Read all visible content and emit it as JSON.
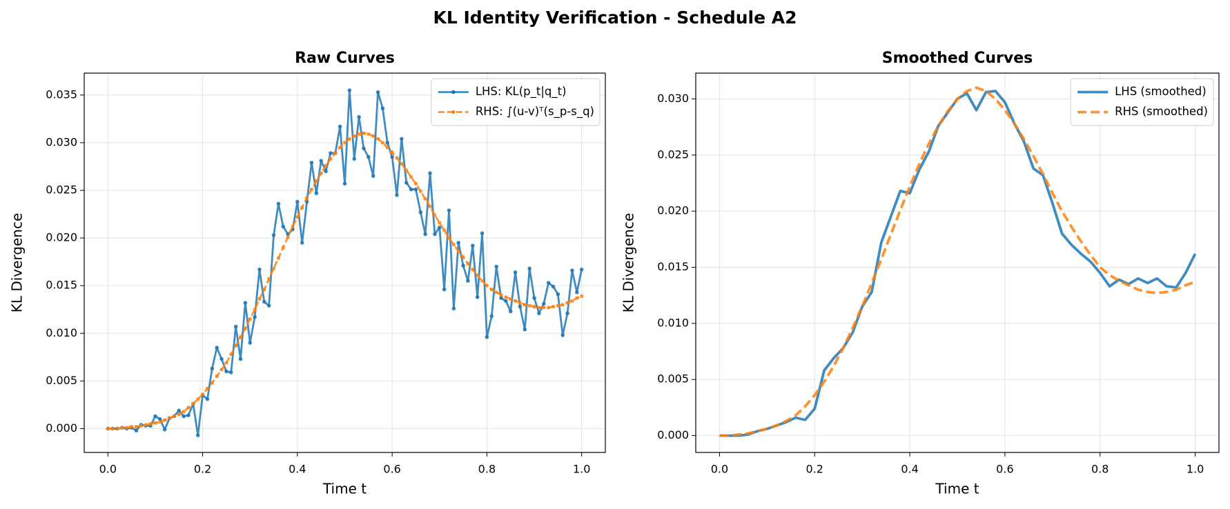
{
  "title": "KL Identity Verification - Schedule A2",
  "chart_data": [
    {
      "type": "line",
      "title": "Raw Curves",
      "xlabel": "Time t",
      "ylabel": "KL Divergence",
      "x": [
        0,
        0.01,
        0.02,
        0.03,
        0.04,
        0.05,
        0.06,
        0.07,
        0.08,
        0.09,
        0.1,
        0.11,
        0.12,
        0.13,
        0.14,
        0.15,
        0.16,
        0.17,
        0.18,
        0.19,
        0.2,
        0.21,
        0.22,
        0.23,
        0.24,
        0.25,
        0.26,
        0.27,
        0.28,
        0.29,
        0.3,
        0.31,
        0.32,
        0.33,
        0.34,
        0.35,
        0.36,
        0.37,
        0.38,
        0.39,
        0.4,
        0.41,
        0.42,
        0.43,
        0.44,
        0.45,
        0.46,
        0.47,
        0.48,
        0.49,
        0.5,
        0.51,
        0.52,
        0.53,
        0.54,
        0.55,
        0.56,
        0.57,
        0.58,
        0.59,
        0.6,
        0.61,
        0.62,
        0.63,
        0.64,
        0.65,
        0.66,
        0.67,
        0.68,
        0.69,
        0.7,
        0.71,
        0.72,
        0.73,
        0.74,
        0.75,
        0.76,
        0.77,
        0.78,
        0.79,
        0.8,
        0.81,
        0.82,
        0.83,
        0.84,
        0.85,
        0.86,
        0.87,
        0.88,
        0.89,
        0.9,
        0.91,
        0.92,
        0.93,
        0.94,
        0.95,
        0.96,
        0.97,
        0.98,
        0.99,
        1
      ],
      "series": [
        {
          "name": "LHS: KL(p_t|q_t)",
          "color": "#1f77b4",
          "marker": "o",
          "linestyle": "solid",
          "values": [
            0,
            0,
            0,
            0.0001,
            0,
            0.0001,
            -0.0002,
            0.0004,
            0.0003,
            0.0003,
            0.0013,
            0.001,
            -0.0001,
            0.0011,
            0.0013,
            0.0019,
            0.0013,
            0.0014,
            0.0026,
            -0.0007,
            0.0035,
            0.0031,
            0.0063,
            0.0085,
            0.0073,
            0.006,
            0.0059,
            0.0107,
            0.0073,
            0.0132,
            0.009,
            0.0117,
            0.0167,
            0.0133,
            0.0129,
            0.0203,
            0.0236,
            0.0212,
            0.0204,
            0.0209,
            0.0238,
            0.0195,
            0.0238,
            0.0279,
            0.0247,
            0.0281,
            0.027,
            0.0289,
            0.0289,
            0.0317,
            0.0257,
            0.0355,
            0.0283,
            0.0327,
            0.0294,
            0.0285,
            0.0265,
            0.0353,
            0.0336,
            0.03,
            0.0285,
            0.0245,
            0.0304,
            0.0258,
            0.0251,
            0.0251,
            0.0227,
            0.0204,
            0.0268,
            0.0204,
            0.0211,
            0.0146,
            0.0229,
            0.0126,
            0.0195,
            0.0171,
            0.0155,
            0.0192,
            0.0138,
            0.0205,
            0.0096,
            0.0118,
            0.017,
            0.0137,
            0.0134,
            0.0123,
            0.0164,
            0.0128,
            0.0104,
            0.0168,
            0.0137,
            0.0121,
            0.0131,
            0.0153,
            0.0149,
            0.0141,
            0.0098,
            0.0121,
            0.0166,
            0.0143,
            0.0167
          ]
        },
        {
          "name": "RHS: ∫(u-v)ᵀ(s_p-s_q)",
          "color": "#ff7f0e",
          "marker": "s",
          "linestyle": "dashed",
          "values": [
            0,
            0,
            0,
            0.0001,
            0.0001,
            0.0002,
            0.0002,
            0.0003,
            0.0004,
            0.0005,
            0.0006,
            0.0007,
            0.0009,
            0.0011,
            0.0013,
            0.0015,
            0.0018,
            0.0022,
            0.0026,
            0.0031,
            0.0036,
            0.0042,
            0.0048,
            0.0055,
            0.0062,
            0.0069,
            0.0078,
            0.0087,
            0.0096,
            0.0105,
            0.0115,
            0.0125,
            0.0136,
            0.0146,
            0.0157,
            0.0168,
            0.0179,
            0.019,
            0.0201,
            0.0212,
            0.0222,
            0.0232,
            0.0242,
            0.0251,
            0.026,
            0.0268,
            0.0276,
            0.0283,
            0.0289,
            0.0295,
            0.03,
            0.0304,
            0.0307,
            0.0309,
            0.031,
            0.0309,
            0.0307,
            0.0304,
            0.03,
            0.0295,
            0.029,
            0.0284,
            0.0278,
            0.0271,
            0.0264,
            0.0257,
            0.0249,
            0.0241,
            0.0233,
            0.0224,
            0.0216,
            0.0208,
            0.02,
            0.0193,
            0.0186,
            0.018,
            0.0173,
            0.0167,
            0.0161,
            0.0155,
            0.015,
            0.0146,
            0.0143,
            0.014,
            0.0138,
            0.0136,
            0.0134,
            0.0132,
            0.013,
            0.0129,
            0.0128,
            0.0127,
            0.0127,
            0.0127,
            0.0128,
            0.0129,
            0.013,
            0.0132,
            0.0134,
            0.0137,
            0.0139
          ]
        }
      ],
      "xlim": [
        -0.05,
        1.05
      ],
      "ylim": [
        -0.0025,
        0.0373
      ],
      "xticks": [
        {
          "value": 0,
          "label": "0.0"
        },
        0.2,
        0.4,
        0.6,
        0.8,
        {
          "value": 1,
          "label": "1.0"
        }
      ],
      "yticks": [
        {
          "value": 0,
          "label": "0.000"
        },
        0.005,
        {
          "value": 0.01,
          "label": "0.010"
        },
        0.015,
        {
          "value": 0.02,
          "label": "0.020"
        },
        0.025,
        {
          "value": 0.03,
          "label": "0.030"
        },
        0.035
      ],
      "grid": true,
      "legend": "upper right"
    },
    {
      "type": "line",
      "title": "Smoothed Curves",
      "xlabel": "Time t",
      "ylabel": "KL Divergence",
      "x": [
        0,
        0.02,
        0.04,
        0.06,
        0.08,
        0.1,
        0.12,
        0.14,
        0.16,
        0.18,
        0.2,
        0.22,
        0.24,
        0.26,
        0.28,
        0.3,
        0.32,
        0.34,
        0.36,
        0.38,
        0.4,
        0.42,
        0.44,
        0.46,
        0.48,
        0.5,
        0.52,
        0.54,
        0.56,
        0.58,
        0.6,
        0.62,
        0.64,
        0.66,
        0.68,
        0.7,
        0.72,
        0.74,
        0.76,
        0.78,
        0.8,
        0.82,
        0.84,
        0.86,
        0.88,
        0.9,
        0.92,
        0.94,
        0.96,
        0.98,
        1
      ],
      "series": [
        {
          "name": "LHS (smoothed)",
          "color": "#1f77b4",
          "linestyle": "solid",
          "values": [
            0,
            0,
            0,
            0.0001,
            0.0004,
            0.0006,
            0.0009,
            0.0012,
            0.0016,
            0.0014,
            0.0024,
            0.0058,
            0.0069,
            0.0078,
            0.0092,
            0.0115,
            0.0128,
            0.0172,
            0.0195,
            0.0218,
            0.0216,
            0.0237,
            0.0253,
            0.0276,
            0.0288,
            0.03,
            0.0305,
            0.029,
            0.0306,
            0.0307,
            0.0297,
            0.0278,
            0.0262,
            0.0238,
            0.0232,
            0.0207,
            0.018,
            0.017,
            0.0162,
            0.0155,
            0.0145,
            0.0133,
            0.0139,
            0.0135,
            0.014,
            0.0136,
            0.014,
            0.0133,
            0.0132,
            0.0145,
            0.0162
          ]
        },
        {
          "name": "RHS (smoothed)",
          "color": "#ff7f0e",
          "linestyle": "dashed",
          "values": [
            0,
            0,
            0.0001,
            0.0002,
            0.0004,
            0.0006,
            0.0009,
            0.0013,
            0.0018,
            0.0026,
            0.0036,
            0.0048,
            0.0062,
            0.0078,
            0.0096,
            0.0115,
            0.0136,
            0.0157,
            0.0179,
            0.0201,
            0.0222,
            0.0242,
            0.026,
            0.0276,
            0.0289,
            0.03,
            0.0307,
            0.031,
            0.0307,
            0.03,
            0.029,
            0.0278,
            0.0264,
            0.0249,
            0.0233,
            0.0216,
            0.02,
            0.0186,
            0.0173,
            0.0161,
            0.015,
            0.0143,
            0.0138,
            0.0134,
            0.013,
            0.0128,
            0.0127,
            0.0128,
            0.013,
            0.0134,
            0.0137
          ]
        }
      ],
      "xlim": [
        -0.05,
        1.05
      ],
      "ylim": [
        -0.0015,
        0.0323
      ],
      "xticks": [
        {
          "value": 0,
          "label": "0.0"
        },
        0.2,
        0.4,
        0.6,
        0.8,
        {
          "value": 1,
          "label": "1.0"
        }
      ],
      "yticks": [
        {
          "value": 0,
          "label": "0.000"
        },
        0.005,
        {
          "value": 0.01,
          "label": "0.010"
        },
        0.015,
        {
          "value": 0.02,
          "label": "0.020"
        },
        0.025,
        {
          "value": 0.03,
          "label": "0.030"
        }
      ],
      "grid": true,
      "legend": "upper right"
    }
  ]
}
